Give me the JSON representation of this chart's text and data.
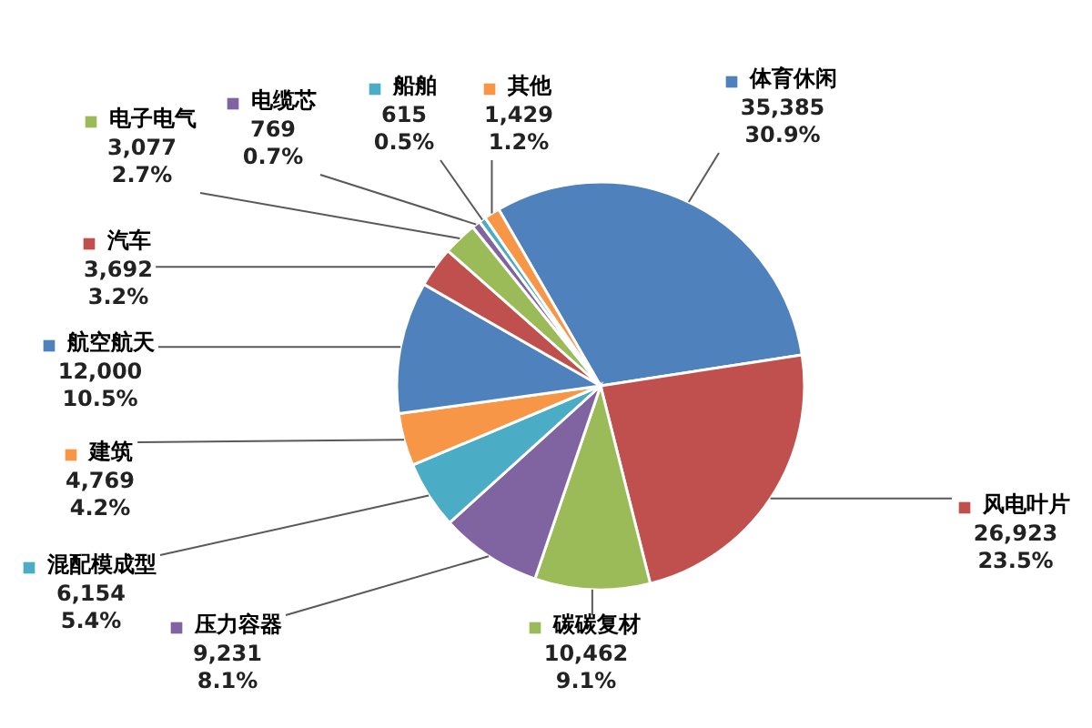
{
  "chart_data": {
    "type": "pie",
    "categories": [
      "体育休闲",
      "风电叶片",
      "碳碳复材",
      "压力容器",
      "混配模成型",
      "建筑",
      "航空航天",
      "汽车",
      "电子电气",
      "电缆芯",
      "船舶",
      "其他"
    ],
    "values": [
      35385,
      26923,
      10462,
      9231,
      6154,
      4769,
      12000,
      3692,
      3077,
      769,
      615,
      1429
    ],
    "colors": [
      "#4f81bd",
      "#c0504d",
      "#9bbb59",
      "#8064a2",
      "#4bacc6",
      "#f79646",
      "#4f81bd",
      "#c0504d",
      "#9bbb59",
      "#8064a2",
      "#4bacc6",
      "#f79646"
    ],
    "value_labels": [
      "35,385\n30.9%",
      "26,923\n23.5%",
      "10,462\n9.1%",
      "9,231\n8.1%",
      "6,154\n5.4%",
      "4,769\n4.2%",
      "12,000\n10.5%",
      "3,692\n3.2%",
      "3,077\n2.7%",
      "769\n0.7%",
      "615\n0.5%",
      "1,429\n1.2%"
    ],
    "legend": true
  }
}
